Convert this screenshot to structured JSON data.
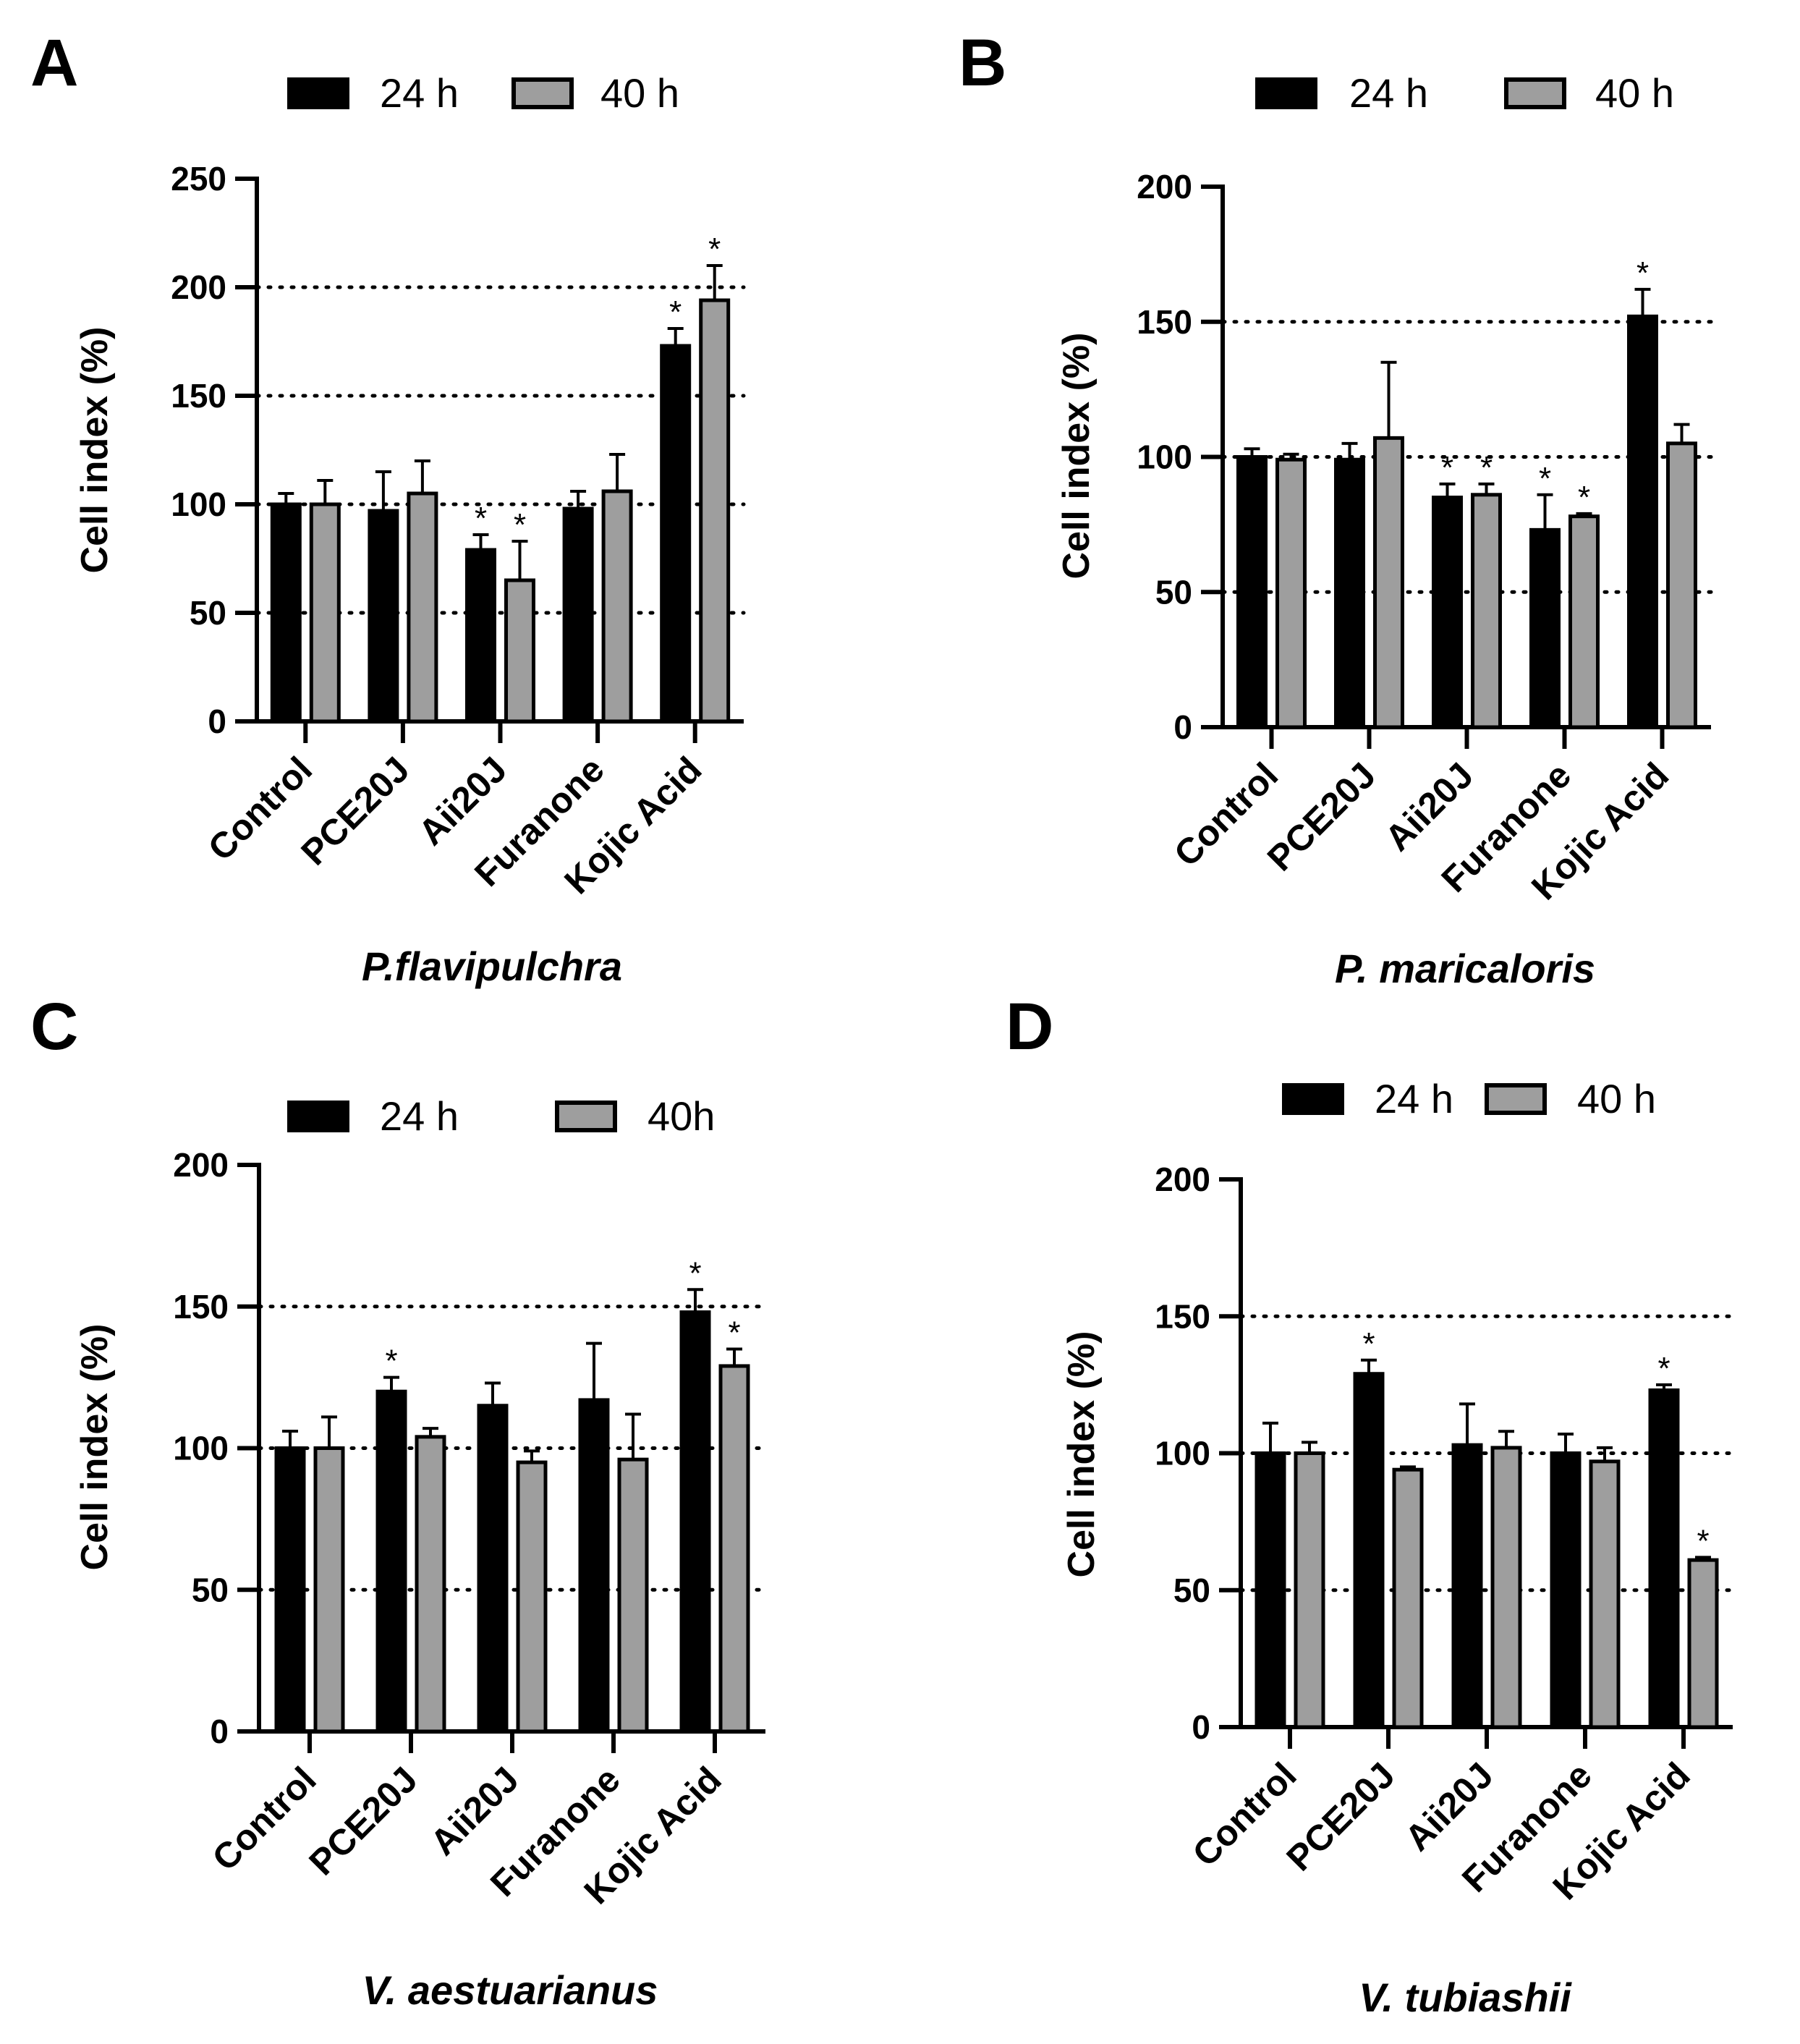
{
  "chart_data": [
    {
      "type": "bar",
      "panel": "A",
      "title": "P.flavipulchra",
      "ylabel": "Cell index (%)",
      "xlabel": "",
      "ylim": [
        0,
        250
      ],
      "yticks": [
        "0",
        "50",
        "100",
        "150",
        "200",
        "250"
      ],
      "reference_lines": [
        50,
        100,
        150,
        200
      ],
      "categories": [
        "Control",
        "PCE20J",
        "Aii20J",
        "Furanone",
        "Kojic Acid"
      ],
      "legend": [
        "24 h",
        "40 h"
      ],
      "series": [
        {
          "name": "24 h",
          "color": "#000000",
          "values": [
            100,
            97,
            79,
            98,
            173
          ],
          "errors": [
            5,
            18,
            7,
            8,
            8
          ],
          "significant": [
            false,
            false,
            true,
            false,
            true
          ]
        },
        {
          "name": "40 h",
          "color": "#9e9e9e",
          "values": [
            100,
            105,
            65,
            106,
            194
          ],
          "errors": [
            11,
            15,
            18,
            17,
            16
          ],
          "significant": [
            false,
            false,
            true,
            false,
            true
          ]
        }
      ],
      "significance_mark": "*"
    },
    {
      "type": "bar",
      "panel": "B",
      "title": "P. maricaloris",
      "ylabel": "Cell index (%)",
      "xlabel": "",
      "ylim": [
        0,
        200
      ],
      "yticks": [
        "0",
        "50",
        "100",
        "150",
        "200"
      ],
      "reference_lines": [
        50,
        100,
        150
      ],
      "categories": [
        "Control",
        "PCE20J",
        "Aii20J",
        "Furanone",
        "Kojic Acid"
      ],
      "legend": [
        "24 h",
        "40 h"
      ],
      "series": [
        {
          "name": "24 h",
          "color": "#000000",
          "values": [
            100,
            99,
            85,
            73,
            152
          ],
          "errors": [
            3,
            6,
            5,
            13,
            10
          ],
          "significant": [
            false,
            false,
            true,
            true,
            true
          ]
        },
        {
          "name": "40 h",
          "color": "#9e9e9e",
          "values": [
            99,
            107,
            86,
            78,
            105
          ],
          "errors": [
            2,
            28,
            4,
            1,
            7
          ],
          "significant": [
            false,
            false,
            true,
            true,
            false
          ]
        }
      ],
      "significance_mark": "*"
    },
    {
      "type": "bar",
      "panel": "C",
      "title": "V. aestuarianus",
      "ylabel": "Cell index (%)",
      "xlabel": "",
      "ylim": [
        0,
        200
      ],
      "yticks": [
        "0",
        "50",
        "100",
        "150",
        "200"
      ],
      "reference_lines": [
        50,
        100,
        150
      ],
      "categories": [
        "Control",
        "PCE20J",
        "Aii20J",
        "Furanone",
        "Kojic Acid"
      ],
      "legend": [
        "24 h",
        "40h"
      ],
      "series": [
        {
          "name": "24 h",
          "color": "#000000",
          "values": [
            100,
            120,
            115,
            117,
            148
          ],
          "errors": [
            6,
            5,
            8,
            20,
            8
          ],
          "significant": [
            false,
            true,
            false,
            false,
            true
          ]
        },
        {
          "name": "40h",
          "color": "#9e9e9e",
          "values": [
            100,
            104,
            95,
            96,
            129
          ],
          "errors": [
            11,
            3,
            4,
            16,
            6
          ],
          "significant": [
            false,
            false,
            false,
            false,
            true
          ]
        }
      ],
      "significance_mark": "*"
    },
    {
      "type": "bar",
      "panel": "D",
      "title": "V. tubiashii",
      "ylabel": "Cell index (%)",
      "xlabel": "",
      "ylim": [
        0,
        200
      ],
      "yticks": [
        "0",
        "50",
        "100",
        "150",
        "200"
      ],
      "reference_lines": [
        50,
        100,
        150
      ],
      "categories": [
        "Control",
        "PCE20J",
        "Aii20J",
        "Furanone",
        "Kojic Acid"
      ],
      "legend": [
        "24 h",
        "40 h"
      ],
      "series": [
        {
          "name": "24 h",
          "color": "#000000",
          "values": [
            100,
            129,
            103,
            100,
            123
          ],
          "errors": [
            11,
            5,
            15,
            7,
            2
          ],
          "significant": [
            false,
            true,
            false,
            false,
            true
          ]
        },
        {
          "name": "40 h",
          "color": "#9e9e9e",
          "values": [
            100,
            94,
            102,
            97,
            61
          ],
          "errors": [
            4,
            1,
            6,
            5,
            1
          ],
          "significant": [
            false,
            false,
            false,
            false,
            true
          ]
        }
      ],
      "significance_mark": "*"
    }
  ]
}
